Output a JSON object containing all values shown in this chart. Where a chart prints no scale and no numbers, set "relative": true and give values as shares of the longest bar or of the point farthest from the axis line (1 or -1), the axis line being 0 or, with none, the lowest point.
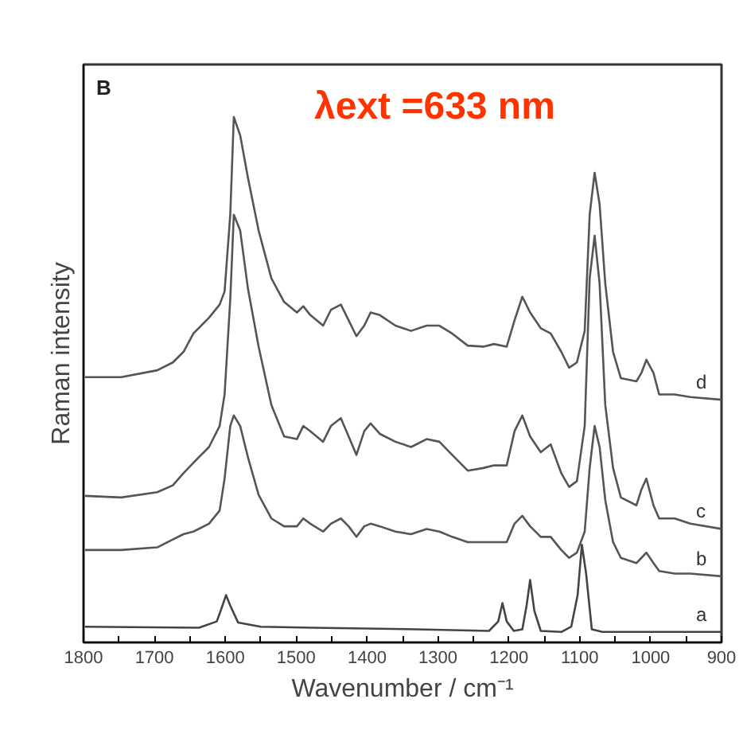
{
  "chart_data": {
    "type": "line",
    "relative": true,
    "xlabel": "Wavenumber / cm⁻¹",
    "ylabel": "Raman intensity",
    "annotations": [
      "B",
      "λext =633 nm"
    ],
    "xlim": [
      1800,
      900
    ],
    "xticks": [
      1800,
      {
        "value": 1750,
        "label": null
      },
      1700,
      {
        "value": 1650,
        "label": null
      },
      1600,
      {
        "value": 1550,
        "label": null
      },
      1500,
      {
        "value": 1450,
        "label": null
      },
      1400,
      {
        "value": 1350,
        "label": null
      },
      1300,
      {
        "value": 1250,
        "label": null
      },
      1200,
      {
        "value": 1150,
        "label": null
      },
      1100,
      {
        "value": 1050,
        "label": null
      },
      1000,
      {
        "value": 950,
        "label": null
      },
      900
    ],
    "grid": false,
    "marker": "none",
    "line_style": "solid",
    "x": [
      1798,
      1747,
      1696,
      1674,
      1659,
      1645,
      1623,
      1608,
      1601,
      1593,
      1588,
      1579,
      1568,
      1553,
      1535,
      1517,
      1499,
      1490,
      1480,
      1462,
      1451,
      1437,
      1426,
      1415,
      1404,
      1395,
      1382,
      1360,
      1338,
      1316,
      1298,
      1280,
      1258,
      1236,
      1221,
      1203,
      1192,
      1181,
      1170,
      1155,
      1141,
      1126,
      1115,
      1104,
      1093,
      1086,
      1079,
      1072,
      1064,
      1053,
      1042,
      1020,
      1013,
      1006,
      996,
      988,
      966,
      944,
      900
    ],
    "series": [
      {
        "name": "a",
        "color": "#444444",
        "x": [
          1798,
          1637,
          1612,
          1604,
          1599,
          1593,
          1582,
          1550,
          1477,
          1331,
          1228,
          1215,
          1209,
          1203,
          1193,
          1181,
          1175,
          1170,
          1164,
          1155,
          1126,
          1112,
          1103,
          1097,
          1091,
          1083,
          1068,
          900
        ],
        "values": [
          0.03,
          0.028,
          0.04,
          0.07,
          0.09,
          0.07,
          0.038,
          0.03,
          0.028,
          0.025,
          0.022,
          0.04,
          0.075,
          0.04,
          0.022,
          0.025,
          0.07,
          0.119,
          0.06,
          0.022,
          0.02,
          0.03,
          0.09,
          0.186,
          0.131,
          0.025,
          0.02,
          0.02
        ]
      },
      {
        "name": "b",
        "color": "#555555",
        "values": [
          0.176,
          0.176,
          0.181,
          0.196,
          0.206,
          0.211,
          0.226,
          0.251,
          0.312,
          0.412,
          0.432,
          0.412,
          0.352,
          0.281,
          0.236,
          0.221,
          0.221,
          0.236,
          0.226,
          0.211,
          0.226,
          0.236,
          0.221,
          0.201,
          0.221,
          0.226,
          0.221,
          0.211,
          0.206,
          0.216,
          0.211,
          0.201,
          0.191,
          0.191,
          0.191,
          0.191,
          0.226,
          0.241,
          0.221,
          0.201,
          0.201,
          0.176,
          0.161,
          0.171,
          0.211,
          0.332,
          0.412,
          0.372,
          0.271,
          0.191,
          0.161,
          0.151,
          0.161,
          0.171,
          0.151,
          0.136,
          0.131,
          0.131,
          0.126
        ]
      },
      {
        "name": "c",
        "color": "#555555",
        "values": [
          0.279,
          0.276,
          0.286,
          0.299,
          0.322,
          0.342,
          0.372,
          0.412,
          0.472,
          0.653,
          0.814,
          0.784,
          0.673,
          0.563,
          0.452,
          0.392,
          0.387,
          0.412,
          0.402,
          0.382,
          0.412,
          0.427,
          0.392,
          0.357,
          0.402,
          0.417,
          0.397,
          0.382,
          0.372,
          0.387,
          0.382,
          0.357,
          0.327,
          0.332,
          0.337,
          0.337,
          0.402,
          0.432,
          0.392,
          0.362,
          0.377,
          0.322,
          0.296,
          0.307,
          0.412,
          0.693,
          0.774,
          0.683,
          0.452,
          0.332,
          0.276,
          0.261,
          0.291,
          0.312,
          0.261,
          0.236,
          0.236,
          0.226,
          0.216
        ]
      },
      {
        "name": "d",
        "color": "#555555",
        "values": [
          0.505,
          0.505,
          0.518,
          0.533,
          0.553,
          0.588,
          0.618,
          0.643,
          0.668,
          0.814,
          1.0,
          0.965,
          0.884,
          0.784,
          0.693,
          0.648,
          0.628,
          0.64,
          0.623,
          0.603,
          0.633,
          0.643,
          0.613,
          0.583,
          0.603,
          0.628,
          0.623,
          0.603,
          0.593,
          0.603,
          0.603,
          0.588,
          0.565,
          0.563,
          0.568,
          0.563,
          0.613,
          0.658,
          0.628,
          0.598,
          0.588,
          0.553,
          0.523,
          0.533,
          0.593,
          0.814,
          0.894,
          0.834,
          0.683,
          0.553,
          0.503,
          0.497,
          0.513,
          0.538,
          0.513,
          0.472,
          0.472,
          0.467,
          0.462
        ]
      }
    ]
  }
}
